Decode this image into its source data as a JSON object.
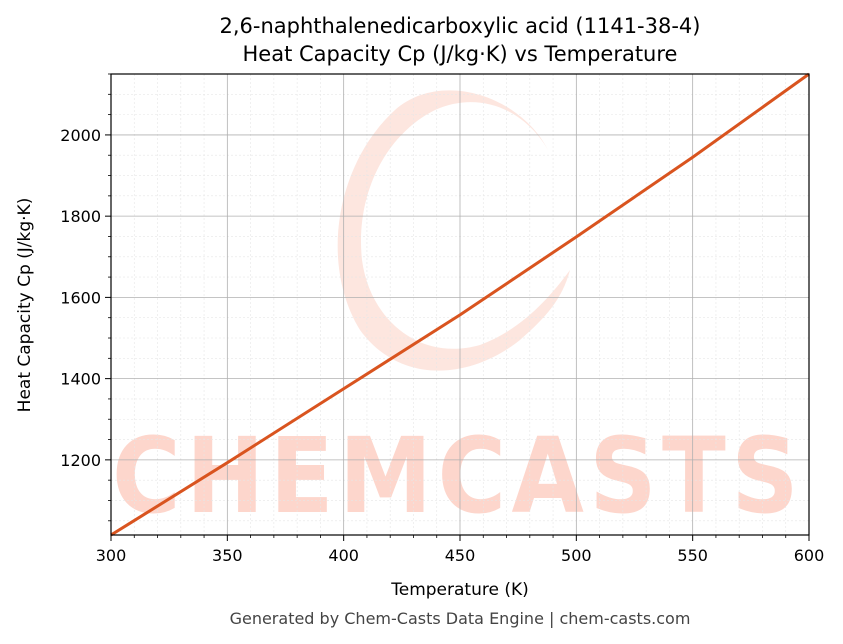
{
  "chart_data": {
    "type": "line",
    "title": "2,6-naphthalenedicarboxylic acid (1141-38-4)",
    "subtitle": "Heat Capacity Cp (J/kg·K) vs Temperature",
    "xlabel": "Temperature (K)",
    "ylabel": "Heat Capacity Cp (J/kg·K)",
    "xlim": [
      300,
      600
    ],
    "ylim": [
      1015,
      2150
    ],
    "x_ticks": [
      300,
      350,
      400,
      450,
      500,
      550,
      600
    ],
    "y_ticks": [
      1200,
      1400,
      1600,
      1800,
      2000
    ],
    "x_minor_step": 10,
    "y_minor_step": 50,
    "grid": true,
    "series": [
      {
        "color": "#d9541f",
        "x": [
          300,
          350,
          400,
          450,
          500,
          550,
          600
        ],
        "y": [
          1015,
          1193,
          1375,
          1557,
          1749,
          1945,
          2150
        ]
      }
    ]
  },
  "watermark": {
    "text": "CHEMCASTS",
    "color": "#fdd6cc"
  },
  "footer": "Generated by Chem-Casts Data Engine | chem-casts.com"
}
